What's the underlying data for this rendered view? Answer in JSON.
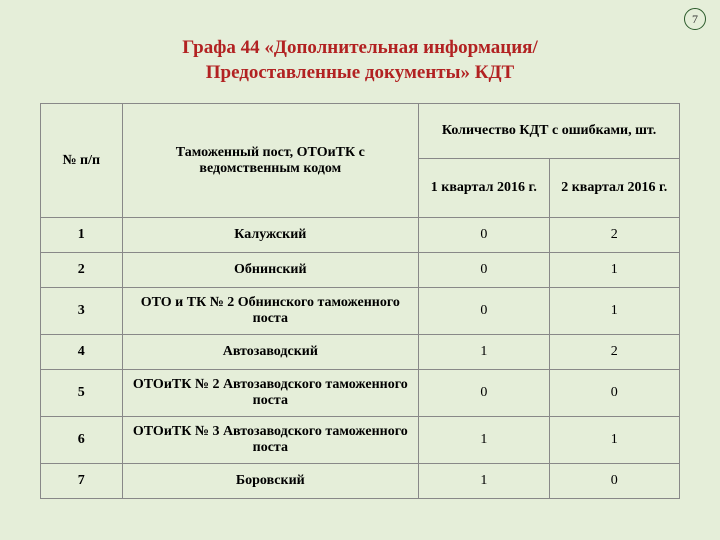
{
  "page_number": "7",
  "title_line1": "Графа 44 «Дополнительная информация/",
  "title_line2": "Предоставленные документы» КДТ",
  "headers": {
    "num": "№ п/п",
    "post": "Таможенный пост, ОТОиТК с ведомственным кодом",
    "count": "Количество КДТ с ошибками, шт.",
    "q1": "1 квартал 2016 г.",
    "q2": "2 квартал 2016 г."
  },
  "rows": [
    {
      "n": "1",
      "post": "Калужский",
      "q1": "0",
      "q2": "2",
      "tall": false
    },
    {
      "n": "2",
      "post": "Обнинский",
      "q1": "0",
      "q2": "1",
      "tall": false
    },
    {
      "n": "3",
      "post": "ОТО и ТК № 2 Обнинского таможенного поста",
      "q1": "0",
      "q2": "1",
      "tall": true
    },
    {
      "n": "4",
      "post": "Автозаводский",
      "q1": "1",
      "q2": "2",
      "tall": false
    },
    {
      "n": "5",
      "post": "ОТОиТК № 2 Автозаводского таможенного поста",
      "q1": "0",
      "q2": "0",
      "tall": true
    },
    {
      "n": "6",
      "post": "ОТОиТК № 3 Автозаводского таможенного поста",
      "q1": "1",
      "q2": "1",
      "tall": true
    },
    {
      "n": "7",
      "post": "Боровский",
      "q1": "1",
      "q2": "0",
      "tall": false
    }
  ],
  "colors": {
    "background": "#e5eed9",
    "title": "#b22222",
    "border": "#888888"
  }
}
